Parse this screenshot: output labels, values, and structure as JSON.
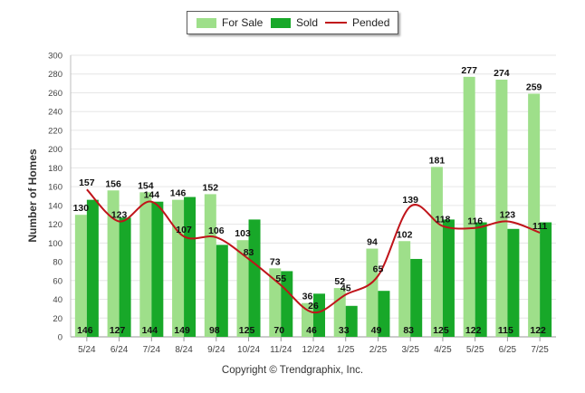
{
  "chart_data": {
    "type": "bar",
    "ylabel": "Number of Homes",
    "ylim": [
      0,
      300
    ],
    "yticks": [
      0,
      20,
      40,
      60,
      80,
      100,
      120,
      140,
      160,
      180,
      200,
      220,
      240,
      260,
      280,
      300
    ],
    "grid": true,
    "legend_position": "top-center",
    "categories": [
      "5/24",
      "6/24",
      "7/24",
      "8/24",
      "9/24",
      "10/24",
      "11/24",
      "12/24",
      "1/25",
      "2/25",
      "3/25",
      "4/25",
      "5/25",
      "6/25",
      "7/25"
    ],
    "series": [
      {
        "name": "For Sale",
        "kind": "bar",
        "color": "#9edf8a",
        "values": [
          130,
          156,
          154,
          146,
          152,
          103,
          73,
          36,
          52,
          94,
          102,
          181,
          277,
          274,
          259
        ]
      },
      {
        "name": "Sold",
        "kind": "bar",
        "color": "#18a829",
        "values": [
          146,
          127,
          144,
          149,
          98,
          125,
          70,
          46,
          33,
          49,
          83,
          125,
          122,
          115,
          122
        ]
      },
      {
        "name": "Pended",
        "kind": "line",
        "color": "#c0141a",
        "values": [
          157,
          123,
          144,
          107,
          106,
          83,
          55,
          26,
          45,
          65,
          139,
          118,
          116,
          123,
          111
        ]
      }
    ]
  },
  "footer": {
    "copyright": "Copyright © Trendgraphix, Inc."
  }
}
